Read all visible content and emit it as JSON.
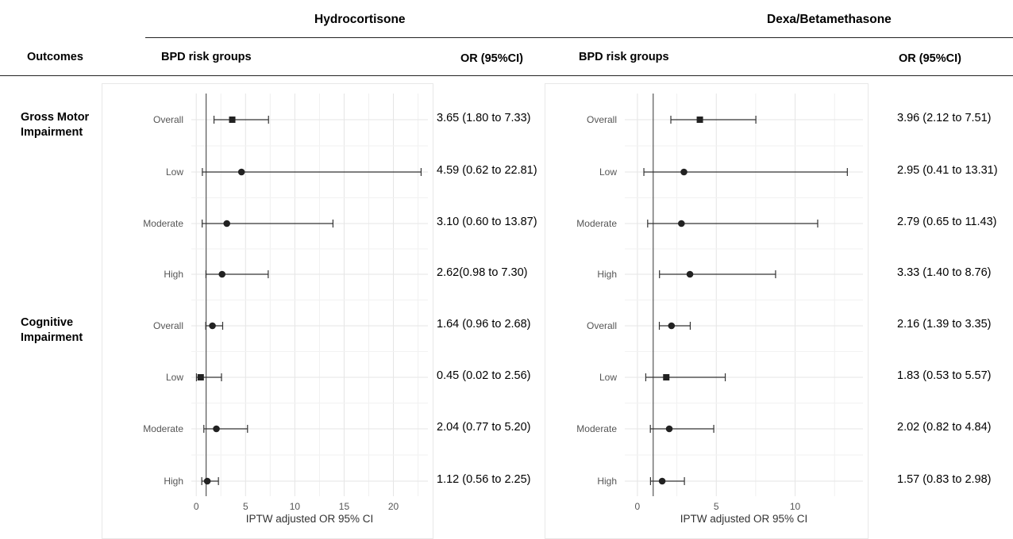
{
  "headers": {
    "outcomes": "Outcomes",
    "bpd_risk_groups": "BPD risk groups",
    "or_ci": "OR (95%CI)"
  },
  "outcomes": [
    {
      "line1": "Gross Motor",
      "line2": "Impairment"
    },
    {
      "line1": "Cognitive",
      "line2": "Impairment"
    }
  ],
  "chart_data": [
    {
      "type": "forest",
      "title": "Hydrocortisone",
      "xlabel": "IPTW adjusted OR 95% CI",
      "xlim": [
        -0.5,
        23.5
      ],
      "xticks": [
        0,
        5,
        10,
        15,
        20
      ],
      "reference_line": 1,
      "grid": true,
      "categories": [
        "Overall",
        "Low",
        "Moderate",
        "High",
        "Overall",
        "Low",
        "Moderate",
        "High"
      ],
      "groups": [
        "Gross Motor Impairment",
        "Gross Motor Impairment",
        "Gross Motor Impairment",
        "Gross Motor Impairment",
        "Cognitive Impairment",
        "Cognitive Impairment",
        "Cognitive Impairment",
        "Cognitive Impairment"
      ],
      "or": [
        3.65,
        4.59,
        3.1,
        2.62,
        1.64,
        0.45,
        2.04,
        1.12
      ],
      "lower": [
        1.8,
        0.62,
        0.6,
        0.98,
        0.96,
        0.02,
        0.77,
        0.56
      ],
      "upper": [
        7.33,
        22.81,
        13.87,
        7.3,
        2.68,
        2.56,
        5.2,
        2.25
      ],
      "markers": [
        "square",
        "circle",
        "circle",
        "circle",
        "circle",
        "square",
        "circle",
        "circle"
      ],
      "or_labels": [
        "3.65 (1.80 to 7.33)",
        "4.59 (0.62 to 22.81)",
        "3.10 (0.60 to 13.87)",
        "2.62(0.98 to 7.30)",
        "1.64 (0.96 to 2.68)",
        "0.45 (0.02 to 2.56)",
        "2.04 (0.77 to 5.20)",
        "1.12 (0.56 to 2.25)"
      ]
    },
    {
      "type": "forest",
      "title": "Dexa/Betamethasone",
      "xlabel": "IPTW adjusted OR 95% CI",
      "xlim": [
        -0.8,
        14.3
      ],
      "xticks": [
        0,
        5,
        10
      ],
      "reference_line": 1,
      "grid": true,
      "categories": [
        "Overall",
        "Low",
        "Moderate",
        "High",
        "Overall",
        "Low",
        "Moderate",
        "High"
      ],
      "groups": [
        "Gross Motor Impairment",
        "Gross Motor Impairment",
        "Gross Motor Impairment",
        "Gross Motor Impairment",
        "Cognitive Impairment",
        "Cognitive Impairment",
        "Cognitive Impairment",
        "Cognitive Impairment"
      ],
      "or": [
        3.96,
        2.95,
        2.79,
        3.33,
        2.16,
        1.83,
        2.02,
        1.57
      ],
      "lower": [
        2.12,
        0.41,
        0.65,
        1.4,
        1.39,
        0.53,
        0.82,
        0.83
      ],
      "upper": [
        7.51,
        13.31,
        11.43,
        8.76,
        3.35,
        5.57,
        4.84,
        2.98
      ],
      "markers": [
        "square",
        "circle",
        "circle",
        "circle",
        "circle",
        "square",
        "circle",
        "circle"
      ],
      "or_labels": [
        "3.96 (2.12 to 7.51)",
        "2.95 (0.41 to 13.31)",
        "2.79 (0.65 to 11.43)",
        "3.33 (1.40 to 8.76)",
        "2.16 (1.39 to 3.35)",
        "1.83 (0.53 to 5.57)",
        "2.02 (0.82 to 4.84)",
        "1.57 (0.83 to 2.98)"
      ]
    }
  ]
}
